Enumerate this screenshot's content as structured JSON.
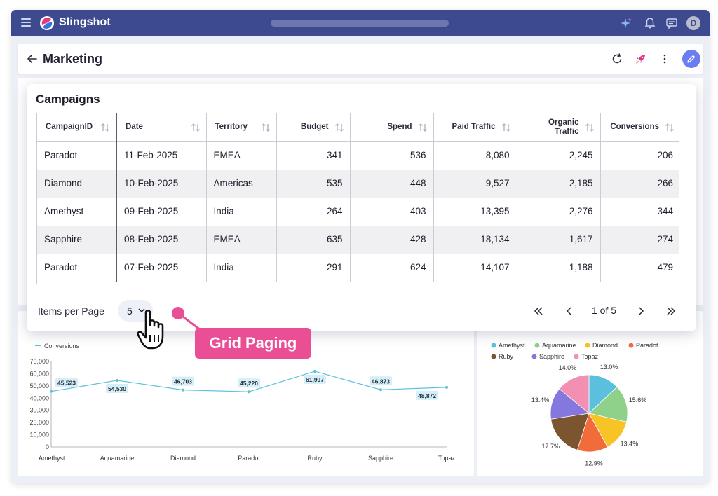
{
  "app": {
    "brand": "Slingshot",
    "avatar_initial": "D"
  },
  "header": {
    "title": "Marketing"
  },
  "campaigns": {
    "title": "Campaigns",
    "columns": [
      "CampaignID",
      "Date",
      "Territory",
      "Budget",
      "Spend",
      "Paid Traffic",
      "Organic Traffic",
      "Conversions"
    ],
    "rows": [
      [
        "Paradot",
        "11-Feb-2025",
        "EMEA",
        "341",
        "536",
        "8,080",
        "2,245",
        "206"
      ],
      [
        "Diamond",
        "10-Feb-2025",
        "Americas",
        "535",
        "448",
        "9,527",
        "2,185",
        "266"
      ],
      [
        "Amethyst",
        "09-Feb-2025",
        "India",
        "264",
        "403",
        "13,395",
        "2,276",
        "344"
      ],
      [
        "Sapphire",
        "08-Feb-2025",
        "EMEA",
        "635",
        "428",
        "18,134",
        "1,617",
        "274"
      ],
      [
        "Paradot",
        "07-Feb-2025",
        "India",
        "291",
        "624",
        "14,107",
        "1,188",
        "479"
      ]
    ],
    "pager": {
      "label": "Items per Page",
      "page_size": "5",
      "page_indicator": "1 of 5"
    }
  },
  "callout": {
    "text": "Grid Paging"
  },
  "chart_data": [
    {
      "type": "line",
      "legend": "Conversions",
      "categories": [
        "Amethyst",
        "Aquamarine",
        "Diamond",
        "Paradot",
        "Ruby",
        "Sapphire",
        "Topaz"
      ],
      "values": [
        45523,
        54530,
        46703,
        45220,
        61997,
        46873,
        48872
      ],
      "labels": [
        "45,523",
        "54,530",
        "46,703",
        "45,220",
        "61,997",
        "46,873",
        "48,872"
      ],
      "yticks": [
        "70,000",
        "60,000",
        "50,000",
        "40,000",
        "30,000",
        "20,000",
        "10,000",
        "0"
      ],
      "ylim": [
        0,
        70000
      ],
      "color": "#5bc0de"
    },
    {
      "type": "pie",
      "legend": [
        "Amethyst",
        "Aquamarine",
        "Diamond",
        "Paradot",
        "Ruby",
        "Sapphire",
        "Topaz"
      ],
      "values": [
        13.0,
        15.6,
        13.4,
        12.9,
        17.7,
        13.4,
        14.0
      ],
      "labels": [
        "13.0%",
        "15.6%",
        "13.4%",
        "12.9%",
        "17.7%",
        "13.4%",
        "14.0%"
      ],
      "colors": [
        "#5bc0de",
        "#8fd18a",
        "#f7c325",
        "#f26b3a",
        "#7b5430",
        "#8478df",
        "#f48fb4"
      ]
    }
  ]
}
